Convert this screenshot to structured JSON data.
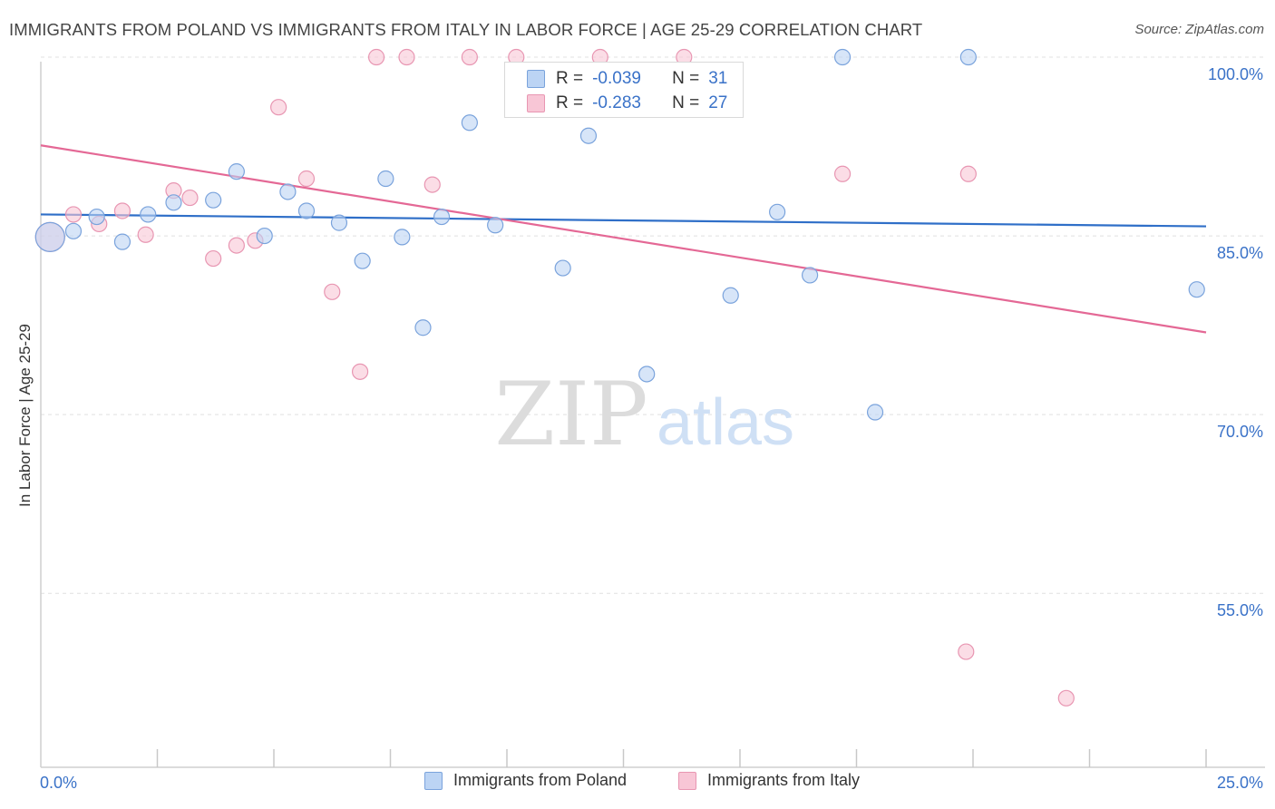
{
  "title": "IMMIGRANTS FROM POLAND VS IMMIGRANTS FROM ITALY IN LABOR FORCE | AGE 25-29 CORRELATION CHART",
  "source": "Source: ZipAtlas.com",
  "watermark": {
    "zip": "ZIP",
    "atlas": "atlas"
  },
  "colors": {
    "poland_fill": "#bcd4f4",
    "poland_stroke": "#7aa3dc",
    "poland_line": "#2f6fc8",
    "italy_fill": "#f8c6d6",
    "italy_stroke": "#e896b2",
    "italy_line": "#e46895",
    "tick_label": "#3a72c8",
    "grid": "#e0e0e0"
  },
  "stats_box": {
    "rows": [
      {
        "r_label": "R =",
        "r_value": "-0.039",
        "n_label": "N =",
        "n_value": "31"
      },
      {
        "r_label": "R =",
        "r_value": "-0.283",
        "n_label": "N =",
        "n_value": "27"
      }
    ]
  },
  "legend": {
    "poland": "Immigrants from Poland",
    "italy": "Immigrants from Italy"
  },
  "chart_data": {
    "type": "scatter",
    "title": "IMMIGRANTS FROM POLAND VS IMMIGRANTS FROM ITALY IN LABOR FORCE | AGE 25-29 CORRELATION CHART",
    "xlabel": "",
    "ylabel": "In Labor Force | Age 25-29",
    "xlim": [
      0,
      25
    ],
    "ylim": [
      40.4,
      101.6
    ],
    "x_tick_labels": [
      "0.0%",
      "25.0%"
    ],
    "y_ticks": [
      55,
      70,
      85,
      100
    ],
    "y_tick_labels": [
      "55.0%",
      "70.0%",
      "85.0%",
      "100.0%"
    ],
    "series": [
      {
        "name": "Immigrants from Poland",
        "points": [
          {
            "x": 0.2,
            "y": 84.9,
            "big": true
          },
          {
            "x": 0.7,
            "y": 85.4
          },
          {
            "x": 1.2,
            "y": 86.6
          },
          {
            "x": 1.75,
            "y": 84.5
          },
          {
            "x": 2.3,
            "y": 86.8
          },
          {
            "x": 2.85,
            "y": 87.8
          },
          {
            "x": 3.7,
            "y": 88.0
          },
          {
            "x": 4.2,
            "y": 90.4
          },
          {
            "x": 4.8,
            "y": 85.0
          },
          {
            "x": 5.3,
            "y": 88.7
          },
          {
            "x": 5.7,
            "y": 87.1
          },
          {
            "x": 6.4,
            "y": 86.1
          },
          {
            "x": 6.9,
            "y": 82.9
          },
          {
            "x": 7.4,
            "y": 89.8
          },
          {
            "x": 7.75,
            "y": 84.9
          },
          {
            "x": 8.2,
            "y": 77.3
          },
          {
            "x": 8.6,
            "y": 86.6
          },
          {
            "x": 9.2,
            "y": 94.5
          },
          {
            "x": 9.75,
            "y": 85.9
          },
          {
            "x": 11.2,
            "y": 82.3
          },
          {
            "x": 11.75,
            "y": 93.4
          },
          {
            "x": 13.0,
            "y": 73.4
          },
          {
            "x": 14.8,
            "y": 80.0
          },
          {
            "x": 15.8,
            "y": 87.0
          },
          {
            "x": 16.5,
            "y": 81.7
          },
          {
            "x": 17.2,
            "y": 100.0
          },
          {
            "x": 17.9,
            "y": 70.2
          },
          {
            "x": 19.9,
            "y": 100.0
          },
          {
            "x": 24.8,
            "y": 80.5
          }
        ],
        "trend": {
          "x": [
            0,
            25
          ],
          "y": [
            86.8,
            85.8
          ]
        }
      },
      {
        "name": "Immigrants from Italy",
        "points": [
          {
            "x": 0.2,
            "y": 84.9,
            "big": true
          },
          {
            "x": 0.7,
            "y": 86.8
          },
          {
            "x": 1.25,
            "y": 86.0
          },
          {
            "x": 1.75,
            "y": 87.1
          },
          {
            "x": 2.25,
            "y": 85.1
          },
          {
            "x": 2.85,
            "y": 88.8
          },
          {
            "x": 3.2,
            "y": 88.2
          },
          {
            "x": 3.7,
            "y": 83.1
          },
          {
            "x": 4.2,
            "y": 84.2
          },
          {
            "x": 4.6,
            "y": 84.6
          },
          {
            "x": 5.1,
            "y": 95.8
          },
          {
            "x": 5.7,
            "y": 89.8
          },
          {
            "x": 6.25,
            "y": 80.3
          },
          {
            "x": 6.85,
            "y": 73.6
          },
          {
            "x": 7.2,
            "y": 100.0
          },
          {
            "x": 7.85,
            "y": 100.0
          },
          {
            "x": 8.4,
            "y": 89.3
          },
          {
            "x": 9.2,
            "y": 100.0
          },
          {
            "x": 10.2,
            "y": 100.0
          },
          {
            "x": 12.0,
            "y": 100.0
          },
          {
            "x": 13.8,
            "y": 100.0
          },
          {
            "x": 17.2,
            "y": 90.2
          },
          {
            "x": 19.9,
            "y": 90.2
          },
          {
            "x": 19.85,
            "y": 50.1
          },
          {
            "x": 22.0,
            "y": 46.2
          }
        ],
        "trend": {
          "x": [
            0,
            25
          ],
          "y": [
            92.6,
            76.9
          ]
        }
      }
    ]
  }
}
